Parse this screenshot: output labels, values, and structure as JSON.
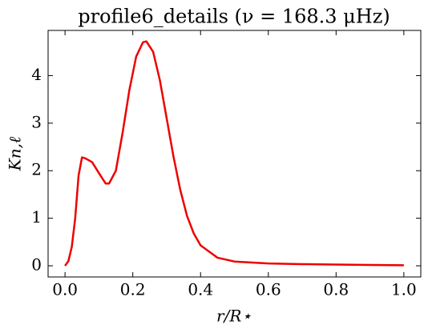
{
  "chart_data": {
    "type": "line",
    "title": "profile6_details (ν = 168.3 μHz)",
    "x_label": "r/R⋆",
    "y_label": "Kn,ℓ",
    "x": [
      0,
      0.01,
      0.02,
      0.03,
      0.04,
      0.05,
      0.06,
      0.08,
      0.1,
      0.12,
      0.13,
      0.15,
      0.17,
      0.19,
      0.21,
      0.23,
      0.24,
      0.26,
      0.28,
      0.3,
      0.32,
      0.34,
      0.36,
      0.38,
      0.4,
      0.45,
      0.5,
      0.6,
      0.7,
      0.8,
      0.9,
      1.0
    ],
    "values": [
      0,
      0.1,
      0.4,
      1.0,
      1.9,
      2.28,
      2.26,
      2.18,
      1.95,
      1.73,
      1.73,
      2.0,
      2.8,
      3.7,
      4.4,
      4.7,
      4.72,
      4.5,
      3.9,
      3.1,
      2.3,
      1.6,
      1.05,
      0.68,
      0.43,
      0.17,
      0.09,
      0.05,
      0.035,
      0.025,
      0.018,
      0.012
    ],
    "color": "#ee0000",
    "xlim": [
      -0.05,
      1.05
    ],
    "ylim": [
      -0.235,
      4.95
    ],
    "xticks": [
      {
        "value": 0,
        "label": "0.0"
      },
      {
        "value": 0.2,
        "label": "0.2"
      },
      {
        "value": 0.4,
        "label": "0.4"
      },
      {
        "value": 0.6,
        "label": "0.6"
      },
      {
        "value": 0.8,
        "label": "0.8"
      },
      {
        "value": 1,
        "label": "1.0"
      }
    ],
    "yticks": [
      0,
      1,
      2,
      3,
      4
    ]
  }
}
